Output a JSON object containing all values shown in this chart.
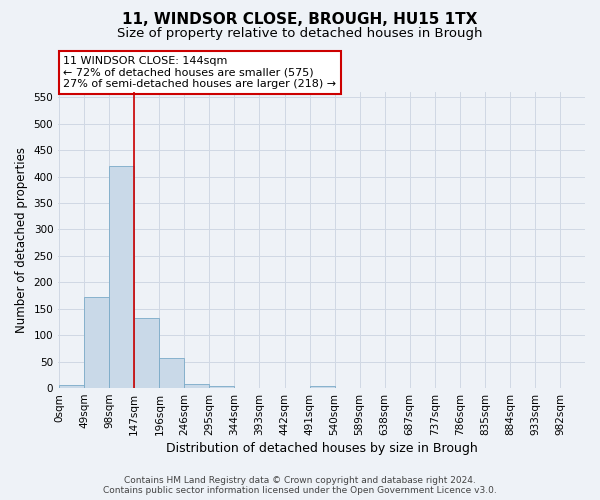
{
  "title": "11, WINDSOR CLOSE, BROUGH, HU15 1TX",
  "subtitle": "Size of property relative to detached houses in Brough",
  "xlabel": "Distribution of detached houses by size in Brough",
  "ylabel": "Number of detached properties",
  "footer_line1": "Contains HM Land Registry data © Crown copyright and database right 2024.",
  "footer_line2": "Contains public sector information licensed under the Open Government Licence v3.0.",
  "annotation_line1": "11 WINDSOR CLOSE: 144sqm",
  "annotation_line2": "← 72% of detached houses are smaller (575)",
  "annotation_line3": "27% of semi-detached houses are larger (218) →",
  "bar_edges": [
    0,
    49,
    98,
    147,
    196,
    245,
    294,
    343,
    392,
    441,
    490,
    539,
    588,
    637,
    686,
    735,
    784,
    833,
    882,
    931,
    980
  ],
  "bar_labels": [
    "0sqm",
    "49sqm",
    "98sqm",
    "147sqm",
    "196sqm",
    "246sqm",
    "295sqm",
    "344sqm",
    "393sqm",
    "442sqm",
    "491sqm",
    "540sqm",
    "589sqm",
    "638sqm",
    "687sqm",
    "737sqm",
    "786sqm",
    "835sqm",
    "884sqm",
    "933sqm",
    "982sqm"
  ],
  "bar_values": [
    5,
    172,
    421,
    132,
    57,
    8,
    4,
    1,
    0,
    0,
    3,
    0,
    0,
    0,
    0,
    0,
    0,
    0,
    0,
    0,
    3
  ],
  "bar_color": "#c9d9e8",
  "bar_edge_color": "#7aaac8",
  "vline_color": "#cc0000",
  "vline_x": 147,
  "ylim": [
    0,
    560
  ],
  "yticks": [
    0,
    50,
    100,
    150,
    200,
    250,
    300,
    350,
    400,
    450,
    500,
    550
  ],
  "grid_color": "#d0d8e4",
  "background_color": "#eef2f7",
  "axes_facecolor": "#eef2f7",
  "annotation_box_color": "#ffffff",
  "annotation_box_edge_color": "#cc0000",
  "title_fontsize": 11,
  "subtitle_fontsize": 9.5,
  "xlabel_fontsize": 9,
  "ylabel_fontsize": 8.5,
  "tick_fontsize": 7.5,
  "annotation_fontsize": 8,
  "footer_fontsize": 6.5
}
